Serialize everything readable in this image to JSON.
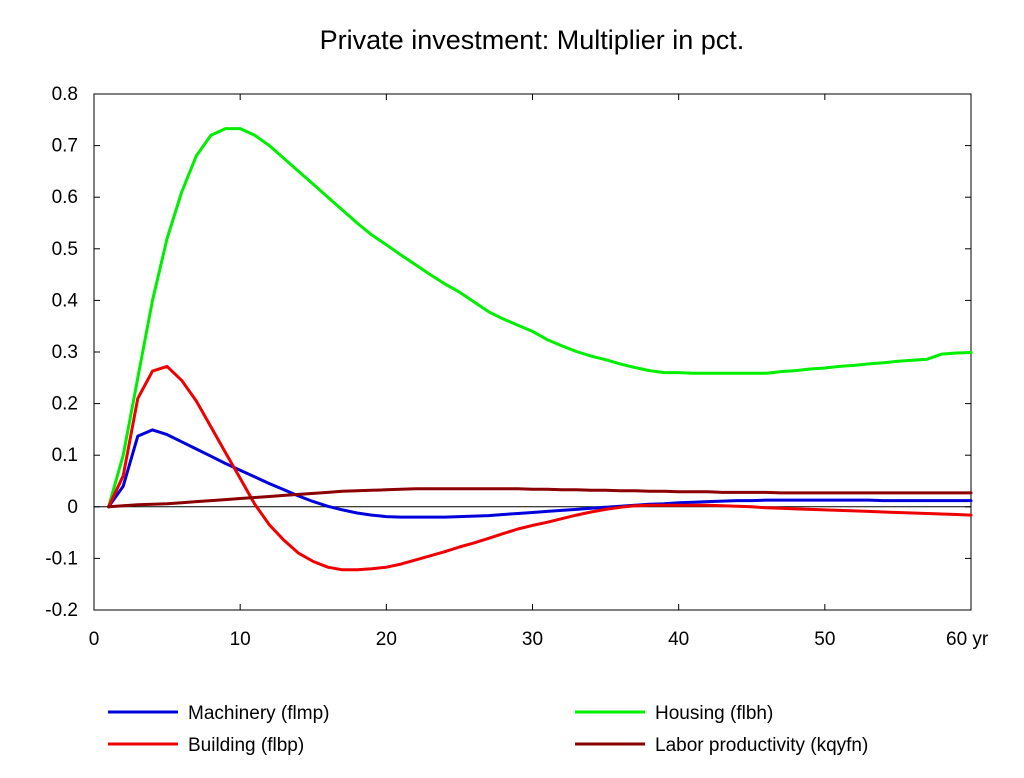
{
  "chart_data": {
    "type": "line",
    "title": "Private investment: Multiplier in pct.",
    "xlabel": "",
    "ylabel": "",
    "xlim": [
      0,
      60
    ],
    "ylim": [
      -0.2,
      0.8
    ],
    "x_ticks": [
      0,
      10,
      20,
      30,
      40,
      50,
      60
    ],
    "x_tick_labels": [
      "0",
      "10",
      "20",
      "30",
      "40",
      "50",
      "60 yr"
    ],
    "y_ticks": [
      -0.2,
      -0.1,
      0,
      0.1,
      0.2,
      0.3,
      0.4,
      0.5,
      0.6,
      0.7,
      0.8
    ],
    "y_tick_labels": [
      "-0.2",
      "-0.1",
      "0",
      "0.1",
      "0.2",
      "0.3",
      "0.4",
      "0.5",
      "0.6",
      "0.7",
      "0.8"
    ],
    "grid": false,
    "zero_line": true,
    "legend_position": "bottom",
    "x": [
      1,
      2,
      3,
      4,
      5,
      6,
      7,
      8,
      9,
      10,
      11,
      12,
      13,
      14,
      15,
      16,
      17,
      18,
      19,
      20,
      21,
      22,
      23,
      24,
      25,
      26,
      27,
      28,
      29,
      30,
      31,
      32,
      33,
      34,
      35,
      36,
      37,
      38,
      39,
      40,
      41,
      42,
      43,
      44,
      45,
      46,
      47,
      48,
      49,
      50,
      51,
      52,
      53,
      54,
      55,
      56,
      57,
      58,
      59,
      60
    ],
    "series": [
      {
        "name": "Machinery (flmp)",
        "color": "#0000dd",
        "values": [
          0,
          0.04,
          0.137,
          0.149,
          0.14,
          0.126,
          0.112,
          0.098,
          0.084,
          0.071,
          0.058,
          0.045,
          0.033,
          0.021,
          0.01,
          0.001,
          -0.006,
          -0.012,
          -0.016,
          -0.019,
          -0.02,
          -0.02,
          -0.02,
          -0.02,
          -0.019,
          -0.018,
          -0.017,
          -0.015,
          -0.013,
          -0.011,
          -0.009,
          -0.007,
          -0.005,
          -0.003,
          -0.001,
          0.001,
          0.003,
          0.005,
          0.006,
          0.008,
          0.009,
          0.01,
          0.011,
          0.012,
          0.012,
          0.013,
          0.013,
          0.013,
          0.013,
          0.013,
          0.013,
          0.013,
          0.013,
          0.012,
          0.012,
          0.012,
          0.012,
          0.012,
          0.012,
          0.012
        ]
      },
      {
        "name": "Housing (flbh)",
        "color": "#00ee00",
        "values": [
          0,
          0.1,
          0.25,
          0.4,
          0.52,
          0.61,
          0.68,
          0.72,
          0.733,
          0.733,
          0.72,
          0.7,
          0.675,
          0.65,
          0.625,
          0.6,
          0.575,
          0.55,
          0.527,
          0.508,
          0.488,
          0.469,
          0.45,
          0.432,
          0.416,
          0.397,
          0.378,
          0.364,
          0.352,
          0.34,
          0.324,
          0.312,
          0.301,
          0.292,
          0.285,
          0.277,
          0.27,
          0.264,
          0.26,
          0.26,
          0.259,
          0.259,
          0.259,
          0.259,
          0.259,
          0.259,
          0.262,
          0.264,
          0.267,
          0.269,
          0.272,
          0.274,
          0.277,
          0.279,
          0.282,
          0.284,
          0.286,
          0.296,
          0.298,
          0.299
        ]
      },
      {
        "name": "Building (flbp)",
        "color": "#ee0000",
        "values": [
          0,
          0.06,
          0.21,
          0.263,
          0.272,
          0.245,
          0.205,
          0.155,
          0.105,
          0.055,
          0.005,
          -0.035,
          -0.065,
          -0.09,
          -0.106,
          -0.117,
          -0.122,
          -0.122,
          -0.12,
          -0.117,
          -0.111,
          -0.103,
          -0.095,
          -0.087,
          -0.078,
          -0.07,
          -0.061,
          -0.052,
          -0.043,
          -0.036,
          -0.03,
          -0.023,
          -0.016,
          -0.01,
          -0.005,
          -0.001,
          0.002,
          0.003,
          0.003,
          0.003,
          0.003,
          0.003,
          0.002,
          0.001,
          0.0,
          -0.002,
          -0.003,
          -0.004,
          -0.005,
          -0.006,
          -0.007,
          -0.008,
          -0.009,
          -0.01,
          -0.011,
          -0.012,
          -0.013,
          -0.014,
          -0.015,
          -0.016
        ]
      },
      {
        "name": "Labor productivity (kqyfn)",
        "color": "#8b0000",
        "values": [
          0,
          0.002,
          0.004,
          0.005,
          0.006,
          0.008,
          0.01,
          0.012,
          0.014,
          0.016,
          0.018,
          0.02,
          0.022,
          0.024,
          0.026,
          0.028,
          0.03,
          0.031,
          0.032,
          0.033,
          0.034,
          0.035,
          0.035,
          0.035,
          0.035,
          0.035,
          0.035,
          0.035,
          0.035,
          0.034,
          0.034,
          0.033,
          0.033,
          0.032,
          0.032,
          0.031,
          0.031,
          0.03,
          0.03,
          0.029,
          0.029,
          0.029,
          0.028,
          0.028,
          0.028,
          0.028,
          0.027,
          0.027,
          0.027,
          0.027,
          0.027,
          0.027,
          0.027,
          0.027,
          0.027,
          0.027,
          0.027,
          0.027,
          0.027,
          0.027
        ]
      }
    ]
  }
}
